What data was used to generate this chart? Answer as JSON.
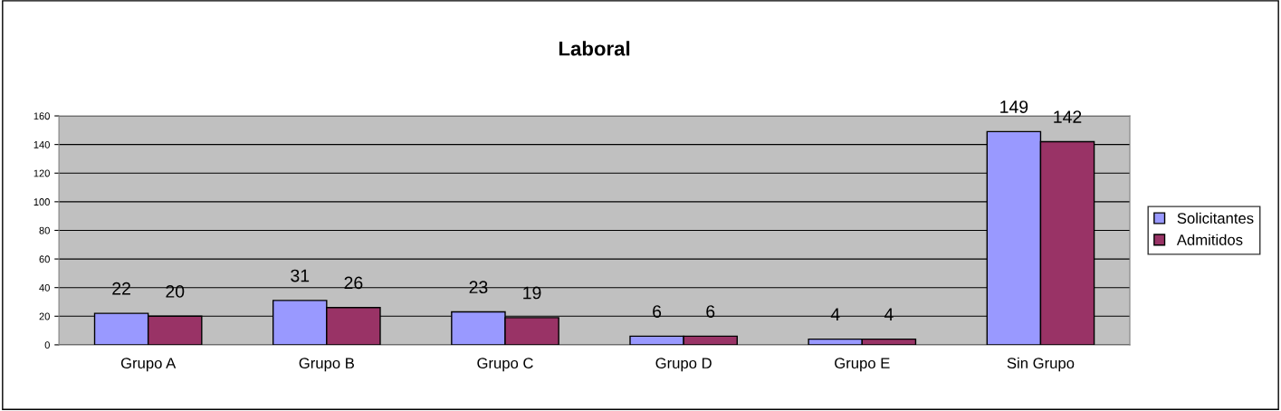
{
  "chart_data": {
    "type": "bar",
    "title": "Laboral",
    "categories": [
      "Grupo A",
      "Grupo B",
      "Grupo C",
      "Grupo D",
      "Grupo E",
      "Sin Grupo"
    ],
    "series": [
      {
        "name": "Solicitantes",
        "color": "#9999ff",
        "values": [
          22,
          31,
          23,
          6,
          4,
          149
        ]
      },
      {
        "name": "Admitidos",
        "color": "#993366",
        "values": [
          20,
          26,
          19,
          6,
          4,
          142
        ]
      }
    ],
    "ylim": [
      0,
      160
    ],
    "yticks": [
      0,
      20,
      40,
      60,
      80,
      100,
      120,
      140,
      160
    ],
    "grid": "y",
    "legend": "right",
    "data_labels": true
  }
}
